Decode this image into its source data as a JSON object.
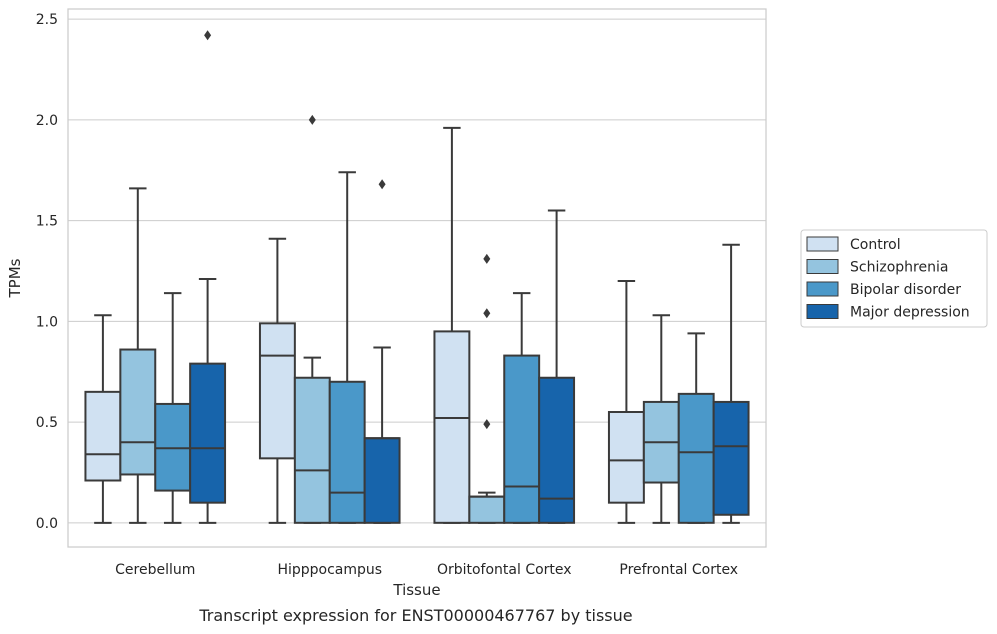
{
  "chart_data": {
    "type": "box",
    "xlabel": "Tissue",
    "ylabel": "TPMs",
    "ylim": [
      -0.12,
      2.55
    ],
    "yticks": [
      "0.0",
      "0.5",
      "1.0",
      "1.5",
      "2.0",
      "2.5"
    ],
    "grid": "horizontal",
    "legend_position": "right",
    "categories": [
      "Cerebellum",
      "Hipppocampus",
      "Orbitofontal Cortex",
      "Prefrontal Cortex"
    ],
    "series": [
      {
        "name": "Control",
        "color": "#d0e1f2",
        "boxes": [
          {
            "whislo": 0.0,
            "q1": 0.21,
            "med": 0.34,
            "q3": 0.65,
            "whishi": 1.03,
            "fliers": []
          },
          {
            "whislo": 0.0,
            "q1": 0.32,
            "med": 0.83,
            "q3": 0.99,
            "whishi": 1.41,
            "fliers": []
          },
          {
            "whislo": 0.0,
            "q1": 0.0,
            "med": 0.52,
            "q3": 0.95,
            "whishi": 1.96,
            "fliers": []
          },
          {
            "whislo": 0.0,
            "q1": 0.1,
            "med": 0.31,
            "q3": 0.55,
            "whishi": 1.2,
            "fliers": []
          }
        ]
      },
      {
        "name": "Schizophrenia",
        "color": "#94c4df",
        "boxes": [
          {
            "whislo": 0.0,
            "q1": 0.24,
            "med": 0.4,
            "q3": 0.86,
            "whishi": 1.66,
            "fliers": []
          },
          {
            "whislo": 0.0,
            "q1": 0.0,
            "med": 0.26,
            "q3": 0.72,
            "whishi": 0.82,
            "fliers": [
              2.0
            ]
          },
          {
            "whislo": 0.0,
            "q1": 0.0,
            "med": 0.13,
            "q3": 0.13,
            "whishi": 0.15,
            "fliers": [
              0.49,
              1.04,
              1.31
            ]
          },
          {
            "whislo": 0.0,
            "q1": 0.2,
            "med": 0.4,
            "q3": 0.6,
            "whishi": 1.03,
            "fliers": []
          }
        ]
      },
      {
        "name": "Bipolar disorder",
        "color": "#4a98c9",
        "boxes": [
          {
            "whislo": 0.0,
            "q1": 0.16,
            "med": 0.37,
            "q3": 0.59,
            "whishi": 1.14,
            "fliers": []
          },
          {
            "whislo": 0.0,
            "q1": 0.0,
            "med": 0.15,
            "q3": 0.7,
            "whishi": 1.74,
            "fliers": []
          },
          {
            "whislo": 0.0,
            "q1": 0.0,
            "med": 0.18,
            "q3": 0.83,
            "whishi": 1.14,
            "fliers": []
          },
          {
            "whislo": 0.0,
            "q1": 0.0,
            "med": 0.35,
            "q3": 0.64,
            "whishi": 0.94,
            "fliers": []
          }
        ]
      },
      {
        "name": "Major depression",
        "color": "#1764ab",
        "boxes": [
          {
            "whislo": 0.0,
            "q1": 0.1,
            "med": 0.37,
            "q3": 0.79,
            "whishi": 1.21,
            "fliers": [
              2.42
            ]
          },
          {
            "whislo": 0.0,
            "q1": 0.0,
            "med": 0.42,
            "q3": 0.42,
            "whishi": 0.87,
            "fliers": [
              1.68
            ]
          },
          {
            "whislo": 0.0,
            "q1": 0.0,
            "med": 0.12,
            "q3": 0.72,
            "whishi": 1.55,
            "fliers": []
          },
          {
            "whislo": 0.0,
            "q1": 0.04,
            "med": 0.38,
            "q3": 0.6,
            "whishi": 1.38,
            "fliers": []
          }
        ]
      }
    ],
    "caption": "Transcript expression for ENST00000467767 by tissue"
  }
}
